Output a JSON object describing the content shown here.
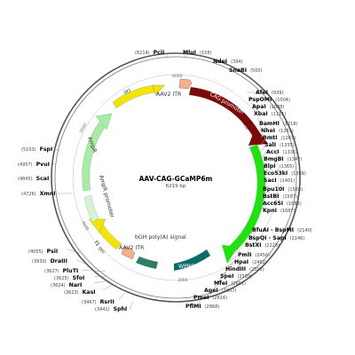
{
  "plasmid": {
    "name": "AAV-CAG-GCaMP6m",
    "size": "6219 bp"
  },
  "ticks": [
    "6000",
    "1000",
    "2000",
    "3000",
    "4000",
    "5000"
  ],
  "features": [
    {
      "id": "f-aav2-itr-top",
      "label": "AAV2 ITR",
      "color": "#f4b08a"
    },
    {
      "id": "f-cag",
      "label": "CAG promoter",
      "color": "#7a0a0a"
    },
    {
      "id": "f-gcamp",
      "label": "GCaMP6m",
      "color": "#22e014"
    },
    {
      "id": "f-wpre",
      "label": "WPRE",
      "color": "#0e6b6b"
    },
    {
      "id": "f-bgh",
      "label": "bGH poly(A) signal",
      "color": "#2e7d64"
    },
    {
      "id": "f-aav2-itr-bot",
      "label": "AAV2 ITR",
      "color": "#f4b08a"
    },
    {
      "id": "f-f1ori",
      "label": "f1 ori",
      "color": "#f2e400"
    },
    {
      "id": "f-ampr-prom",
      "label": "AmpR promoter",
      "color": "#d8f0d8"
    },
    {
      "id": "f-ampr",
      "label": "AmpR",
      "color": "#a8eba8"
    },
    {
      "id": "f-ori",
      "label": "ori",
      "color": "#f2e400"
    }
  ],
  "sites": [
    {
      "name": "PciI",
      "pos": "(6214)"
    },
    {
      "name": "MluI",
      "pos": "(158)"
    },
    {
      "name": "NdeI",
      "pos": "(394)"
    },
    {
      "name": "SnaBI",
      "pos": "(500)"
    },
    {
      "name": "AfeI",
      "pos": "(939)"
    },
    {
      "name": "PspOMI",
      "pos": "(1004)"
    },
    {
      "name": "ApaI",
      "pos": "(1008)"
    },
    {
      "name": "XbaI",
      "pos": "(1111)"
    },
    {
      "name": "BamHI",
      "pos": "(1218)"
    },
    {
      "name": "NheI",
      "pos": "(1263)"
    },
    {
      "name": "BmtI",
      "pos": "(1267)"
    },
    {
      "name": "SalI",
      "pos": "(1335)"
    },
    {
      "name": "AccI",
      "pos": "(1336)"
    },
    {
      "name": "BmgBI",
      "pos": "(1347)"
    },
    {
      "name": "BlpI",
      "pos": "(1365)"
    },
    {
      "name": "Eco53kI",
      "pos": "(1399)"
    },
    {
      "name": "SacI",
      "pos": "(1401)"
    },
    {
      "name": "Bpu10I",
      "pos": "(1566)"
    },
    {
      "name": "BstBI",
      "pos": "(1587)"
    },
    {
      "name": "Acc65I",
      "pos": "(1683)"
    },
    {
      "name": "KpnI",
      "pos": "(1687)"
    },
    {
      "name": "BfuAI - BspMI",
      "pos": "(2140)"
    },
    {
      "name": "BspQI - SapI",
      "pos": "(2146)"
    },
    {
      "name": "BstXI",
      "pos": "(2228)"
    },
    {
      "name": "PmlI",
      "pos": "(2456)"
    },
    {
      "name": "HpaI",
      "pos": "(2462)"
    },
    {
      "name": "HindIII",
      "pos": "(2503)"
    },
    {
      "name": "SpeI",
      "pos": "(2589)"
    },
    {
      "name": "MfeI",
      "pos": "(2601)"
    },
    {
      "name": "AgeI",
      "pos": "(2607)"
    },
    {
      "name": "PmeI",
      "pos": "(2616)"
    },
    {
      "name": "PflMI",
      "pos": "(2868)"
    },
    {
      "name": "SphI",
      "pos": "(3441)"
    },
    {
      "name": "RsrII",
      "pos": "(3467)"
    },
    {
      "name": "KasI",
      "pos": "(3623)"
    },
    {
      "name": "NarI",
      "pos": "(3624)"
    },
    {
      "name": "SfoI",
      "pos": "(3625)"
    },
    {
      "name": "PluTI",
      "pos": "(3627)"
    },
    {
      "name": "DraIII",
      "pos": "(3930)"
    },
    {
      "name": "PsiI",
      "pos": "(4055)"
    },
    {
      "name": "XmnI",
      "pos": "(4726)"
    },
    {
      "name": "ScaI",
      "pos": "(4845)"
    },
    {
      "name": "PvuI",
      "pos": "(4957)"
    },
    {
      "name": "FspI",
      "pos": "(5103)"
    }
  ]
}
